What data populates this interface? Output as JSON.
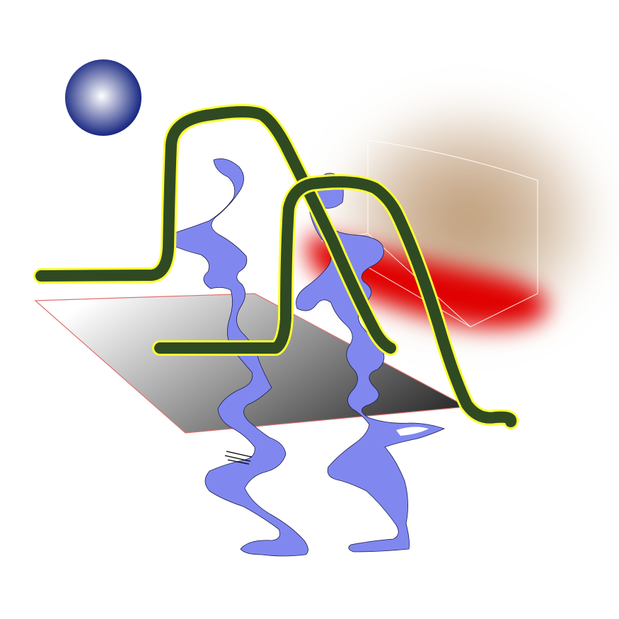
{
  "artwork": {
    "background_color": "#ffffff",
    "sphere": {
      "center_color": "#ffffff",
      "edge_color": "#0a1a7a"
    },
    "haze": {
      "inner_color": "#b8926a"
    },
    "red_streak": {
      "color": "#e00000"
    },
    "outline_box": {
      "stroke_color": "#ffffff"
    },
    "plane": {
      "light_color": "#ffffff",
      "dark_color": "#2a2a2a",
      "edge_color": "#e07070"
    },
    "curves": {
      "fill_color": "#2f4a22",
      "halo_color": "#ffff33"
    },
    "ribbons": {
      "fill_color": "#8088f0",
      "edge_color": "#1a1a4a"
    },
    "hatch": {
      "stroke_color": "#000000"
    }
  }
}
